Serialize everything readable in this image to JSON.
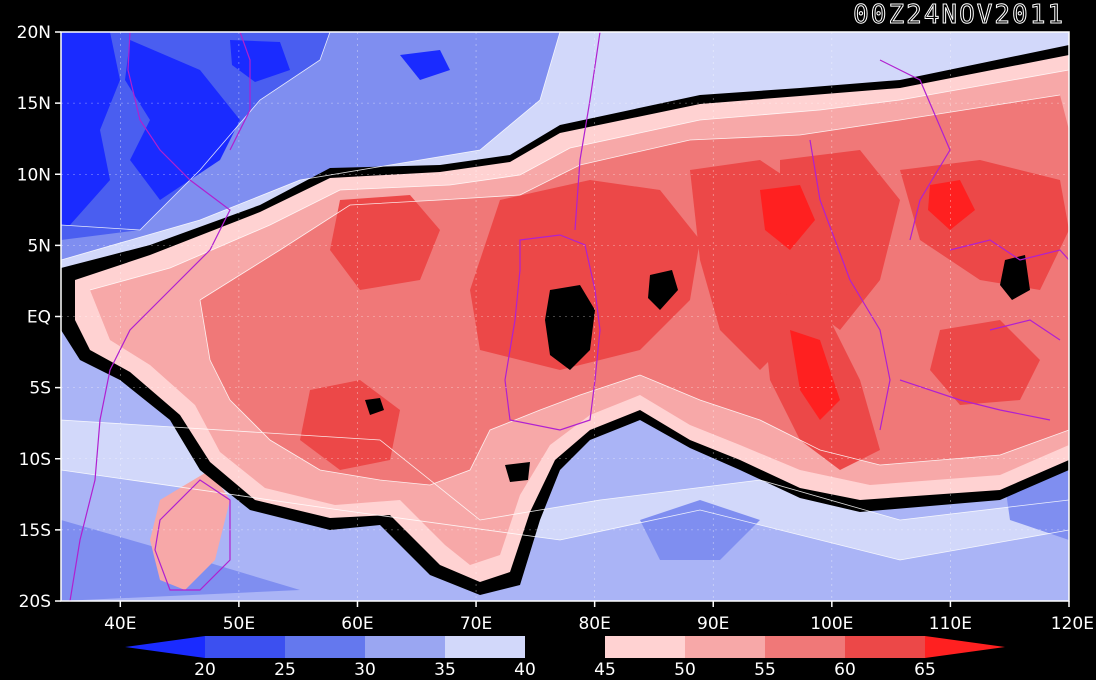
{
  "title": "00Z24NOV2011",
  "map": {
    "lon_range": [
      35,
      120
    ],
    "lat_range": [
      -20,
      20
    ],
    "lat_labels": [
      {
        "lat": 20,
        "label": "20N"
      },
      {
        "lat": 15,
        "label": "15N"
      },
      {
        "lat": 10,
        "label": "10N"
      },
      {
        "lat": 5,
        "label": "5N"
      },
      {
        "lat": 0,
        "label": "EQ"
      },
      {
        "lat": -5,
        "label": "5S"
      },
      {
        "lat": -10,
        "label": "10S"
      },
      {
        "lat": -15,
        "label": "15S"
      },
      {
        "lat": -20,
        "label": "20S"
      }
    ],
    "lon_labels": [
      {
        "lon": 40,
        "label": "40E"
      },
      {
        "lon": 50,
        "label": "50E"
      },
      {
        "lon": 60,
        "label": "60E"
      },
      {
        "lon": 70,
        "label": "70E"
      },
      {
        "lon": 80,
        "label": "80E"
      },
      {
        "lon": 90,
        "label": "90E"
      },
      {
        "lon": 100,
        "label": "100E"
      },
      {
        "lon": 110,
        "label": "110E"
      },
      {
        "lon": 120,
        "label": "120E"
      }
    ]
  },
  "colorbar": {
    "levels": [
      "20",
      "25",
      "30",
      "35",
      "40",
      "45",
      "50",
      "55",
      "60",
      "65"
    ],
    "colors": [
      "#1a2bff",
      "#3c50f0",
      "#6478ee",
      "#9aa6f2",
      "#d2d8fa",
      "#000000",
      "#ffd2d2",
      "#f7a8a8",
      "#f07878",
      "#ec4848",
      "#ff2020"
    ]
  },
  "palette": {
    "deep_blue": "#1a2bff",
    "blue": "#4a5ef0",
    "mid_blue": "#7f8ef0",
    "light_blue": "#aab4f6",
    "pale_blue": "#d2d8fa",
    "black": "#000000",
    "pale_red": "#ffd2d2",
    "light_red": "#f7a8a8",
    "mid_red": "#f07878",
    "red": "#ec4848",
    "deep_red": "#ff2020",
    "coast": "#b020d0"
  }
}
